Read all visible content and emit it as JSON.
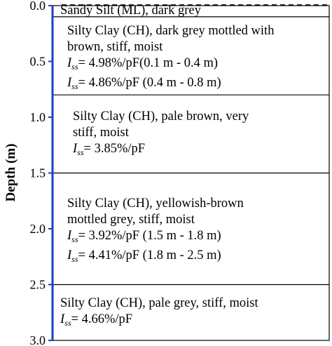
{
  "axis": {
    "label": "Depth (m)",
    "ticks": [
      "0.0",
      "0.5",
      "1.0",
      "1.5",
      "2.0",
      "2.5",
      "3.0"
    ],
    "min": 0,
    "max": 3,
    "color": "#1f3fbf"
  },
  "layers": [
    {
      "top": 0.0,
      "bottom": 0.1,
      "lines": [
        "Sandy Silt (ML),  dark grey"
      ],
      "iss": []
    },
    {
      "top": 0.1,
      "bottom": 0.8,
      "lines": [
        "Silty Clay (CH),   dark grey mottled with",
        "brown, stiff, moist"
      ],
      "iss": [
        "= 4.98%/pF(0.1 m - 0.4 m)",
        "= 4.86%/pF (0.4 m - 0.8 m)"
      ]
    },
    {
      "top": 0.8,
      "bottom": 1.5,
      "lines": [
        "Silty Clay (CH), pale brown, very",
        "stiff, moist"
      ],
      "iss": [
        "= 3.85%/pF"
      ]
    },
    {
      "top": 1.5,
      "bottom": 2.5,
      "lines": [
        "Silty Clay (CH), yellowish-brown",
        "mottled grey, stiff, moist"
      ],
      "iss": [
        "= 3.92%/pF (1.5 m - 1.8 m)",
        "= 4.41%/pF (1.8 m - 2.5 m)"
      ]
    },
    {
      "top": 2.5,
      "bottom": 3.0,
      "lines": [
        "Silty Clay (CH), pale grey, stiff, moist"
      ],
      "iss": [
        "= 4.66%/pF"
      ]
    }
  ],
  "iss_symbol": {
    "base": "I",
    "sub": "ss"
  }
}
